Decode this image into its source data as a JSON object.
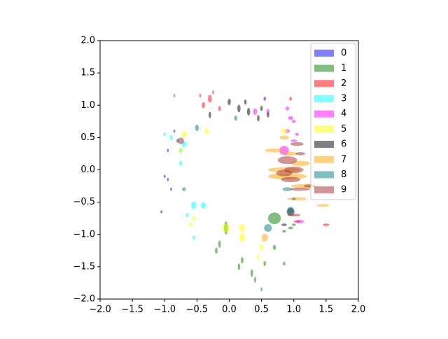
{
  "chart_data": {
    "type": "ellipse-scatter",
    "xlim": [
      -2,
      2
    ],
    "ylim": [
      -2,
      2
    ],
    "xticks": [
      {
        "value": -2,
        "label": "−2.0"
      },
      {
        "value": -1.5,
        "label": "−1.5"
      },
      {
        "value": -1,
        "label": "−1.0"
      },
      {
        "value": -0.5,
        "label": "−0.5"
      },
      {
        "value": 0,
        "label": "0.0"
      },
      {
        "value": 0.5,
        "label": "0.5"
      },
      {
        "value": 1,
        "label": "1.0"
      },
      {
        "value": 1.5,
        "label": "1.5"
      },
      {
        "value": 2,
        "label": "2.0"
      }
    ],
    "yticks": [
      {
        "value": -2,
        "label": "−2.0"
      },
      {
        "value": -1.5,
        "label": "−1.5"
      },
      {
        "value": -1,
        "label": "−1.0"
      },
      {
        "value": -0.5,
        "label": "−0.5"
      },
      {
        "value": 0,
        "label": "0.0"
      },
      {
        "value": 0.5,
        "label": "0.5"
      },
      {
        "value": 1,
        "label": "1.0"
      },
      {
        "value": 1.5,
        "label": "1.5"
      },
      {
        "value": 2,
        "label": "2.0"
      }
    ],
    "legend": "upper right",
    "opacity": 0.5,
    "series": [
      {
        "name": "0",
        "color": "#0000ff",
        "x": [
          -0.95,
          -1.0,
          -0.9,
          -1.05,
          -0.85,
          0.55,
          -0.95
        ],
        "y": [
          0.3,
          -0.1,
          -0.3,
          -0.65,
          0.6,
          1.1,
          -0.15
        ],
        "width": [
          0.03,
          0.03,
          0.03,
          0.03,
          0.03,
          0.04,
          0.03
        ],
        "height": [
          0.05,
          0.05,
          0.05,
          0.05,
          0.05,
          0.06,
          0.05
        ]
      },
      {
        "name": "1",
        "color": "#008000",
        "x": [
          0.7,
          -0.05,
          0.95,
          0.85,
          1.0,
          -0.15,
          0.2,
          0.35,
          0.55,
          0.85,
          0.4,
          0.5,
          -0.2,
          0.15,
          0.7
        ],
        "y": [
          -0.75,
          -0.9,
          -0.9,
          -0.95,
          -0.85,
          -1.15,
          -1.4,
          -1.6,
          -1.45,
          -1.45,
          -1.7,
          -1.85,
          -1.25,
          -1.5,
          -1.2
        ],
        "width": [
          0.2,
          0.06,
          0.08,
          0.06,
          0.06,
          0.04,
          0.04,
          0.04,
          0.04,
          0.04,
          0.03,
          0.03,
          0.04,
          0.04,
          0.05
        ],
        "height": [
          0.18,
          0.2,
          0.04,
          0.04,
          0.04,
          0.12,
          0.1,
          0.12,
          0.08,
          0.06,
          0.1,
          0.06,
          0.1,
          0.1,
          0.08
        ]
      },
      {
        "name": "2",
        "color": "#ff0000",
        "x": [
          -0.4,
          -0.3,
          -0.15,
          -0.45,
          1.05,
          1.5,
          0.95,
          -0.25
        ],
        "y": [
          1.0,
          1.1,
          0.95,
          1.15,
          -0.8,
          -0.85,
          1.1,
          1.2
        ],
        "width": [
          0.05,
          0.06,
          0.04,
          0.03,
          0.1,
          0.1,
          0.04,
          0.03
        ],
        "height": [
          0.1,
          0.12,
          0.08,
          0.06,
          0.04,
          0.04,
          0.06,
          0.06
        ]
      },
      {
        "name": "3",
        "color": "#00ffff",
        "x": [
          -0.9,
          -1.0,
          -0.7,
          -0.75,
          -0.55,
          -0.4,
          -0.65,
          -0.55,
          -0.75
        ],
        "y": [
          0.5,
          0.55,
          0.4,
          0.3,
          -0.55,
          -0.55,
          -0.7,
          -1.05,
          0.1
        ],
        "width": [
          0.05,
          0.04,
          0.08,
          0.06,
          0.08,
          0.08,
          0.05,
          0.05,
          0.05
        ],
        "height": [
          0.08,
          0.06,
          0.1,
          0.08,
          0.12,
          0.1,
          0.06,
          0.06,
          0.08
        ]
      },
      {
        "name": "4",
        "color": "#ff00ff",
        "x": [
          0.9,
          0.95,
          1.0,
          0.85,
          0.9,
          1.05,
          0.4,
          0.6,
          1.1,
          1.0
        ],
        "y": [
          0.95,
          0.8,
          0.75,
          0.3,
          0.6,
          0.55,
          0.9,
          0.9,
          -0.8,
          0.45
        ],
        "width": [
          0.06,
          0.08,
          0.06,
          0.15,
          0.08,
          0.06,
          0.06,
          0.05,
          0.12,
          0.1
        ],
        "height": [
          0.06,
          0.06,
          0.05,
          0.14,
          0.06,
          0.05,
          0.1,
          0.08,
          0.05,
          0.04
        ]
      },
      {
        "name": "5",
        "color": "#ffff00",
        "x": [
          -0.7,
          -0.35,
          -0.75,
          0.2,
          -0.05,
          0.2,
          0.5,
          0.85,
          -0.6,
          0.45,
          -0.55
        ],
        "y": [
          0.55,
          0.6,
          0.3,
          -0.9,
          -0.9,
          -1.05,
          -1.2,
          0.6,
          -0.85,
          -1.35,
          -0.75
        ],
        "width": [
          0.08,
          0.06,
          0.06,
          0.1,
          0.12,
          0.1,
          0.06,
          0.1,
          0.05,
          0.05,
          0.05
        ],
        "height": [
          0.1,
          0.1,
          0.08,
          0.12,
          0.14,
          0.12,
          0.1,
          0.08,
          0.08,
          0.08,
          0.06
        ]
      },
      {
        "name": "6",
        "color": "#000000",
        "x": [
          0.0,
          0.15,
          0.3,
          0.45,
          0.25,
          0.5,
          -0.3,
          0.95,
          0.85,
          0.6
        ],
        "y": [
          1.05,
          0.95,
          0.9,
          0.8,
          1.05,
          0.95,
          0.85,
          -0.65,
          -0.85,
          0.85
        ],
        "width": [
          0.05,
          0.05,
          0.05,
          0.04,
          0.04,
          0.04,
          0.04,
          0.12,
          0.08,
          0.04
        ],
        "height": [
          0.1,
          0.12,
          0.12,
          0.1,
          0.08,
          0.08,
          0.1,
          0.12,
          0.04,
          0.08
        ]
      },
      {
        "name": "7",
        "color": "#ffa500",
        "x": [
          0.7,
          0.85,
          0.9,
          1.1,
          1.2,
          0.55,
          1.05,
          1.45,
          0.85,
          0.95
        ],
        "y": [
          0.3,
          0.0,
          -0.1,
          0.1,
          -0.25,
          -1.05,
          -0.45,
          -0.55,
          0.5,
          0.25
        ],
        "width": [
          0.3,
          0.5,
          0.6,
          0.3,
          0.5,
          0.1,
          0.3,
          0.2,
          0.15,
          0.2
        ],
        "height": [
          0.06,
          0.08,
          0.1,
          0.08,
          0.06,
          0.12,
          0.05,
          0.04,
          0.06,
          0.06
        ]
      },
      {
        "name": "8",
        "color": "#008080",
        "x": [
          -0.85,
          -0.5,
          -0.8,
          0.6,
          0.95,
          1.0,
          -0.7,
          0.1,
          0.9
        ],
        "y": [
          1.15,
          0.65,
          0.45,
          -0.9,
          -0.62,
          -0.45,
          -0.3,
          0.8,
          -0.3
        ],
        "width": [
          0.03,
          0.06,
          0.05,
          0.12,
          0.1,
          0.06,
          0.06,
          0.05,
          0.15
        ],
        "height": [
          0.06,
          0.1,
          0.06,
          0.12,
          0.1,
          0.04,
          0.06,
          0.08,
          0.06
        ]
      },
      {
        "name": "9",
        "color": "#a52a2a",
        "x": [
          0.9,
          1.0,
          0.85,
          1.05,
          1.1,
          1.0,
          1.25,
          -0.75,
          0.95,
          1.1
        ],
        "y": [
          0.15,
          0.0,
          -0.05,
          0.4,
          -0.3,
          -0.7,
          -0.25,
          0.45,
          -0.15,
          0.25
        ],
        "width": [
          0.3,
          0.3,
          0.25,
          0.2,
          0.3,
          0.2,
          0.2,
          0.1,
          0.3,
          0.15
        ],
        "height": [
          0.12,
          0.1,
          0.1,
          0.06,
          0.05,
          0.04,
          0.05,
          0.1,
          0.08,
          0.05
        ]
      }
    ]
  }
}
